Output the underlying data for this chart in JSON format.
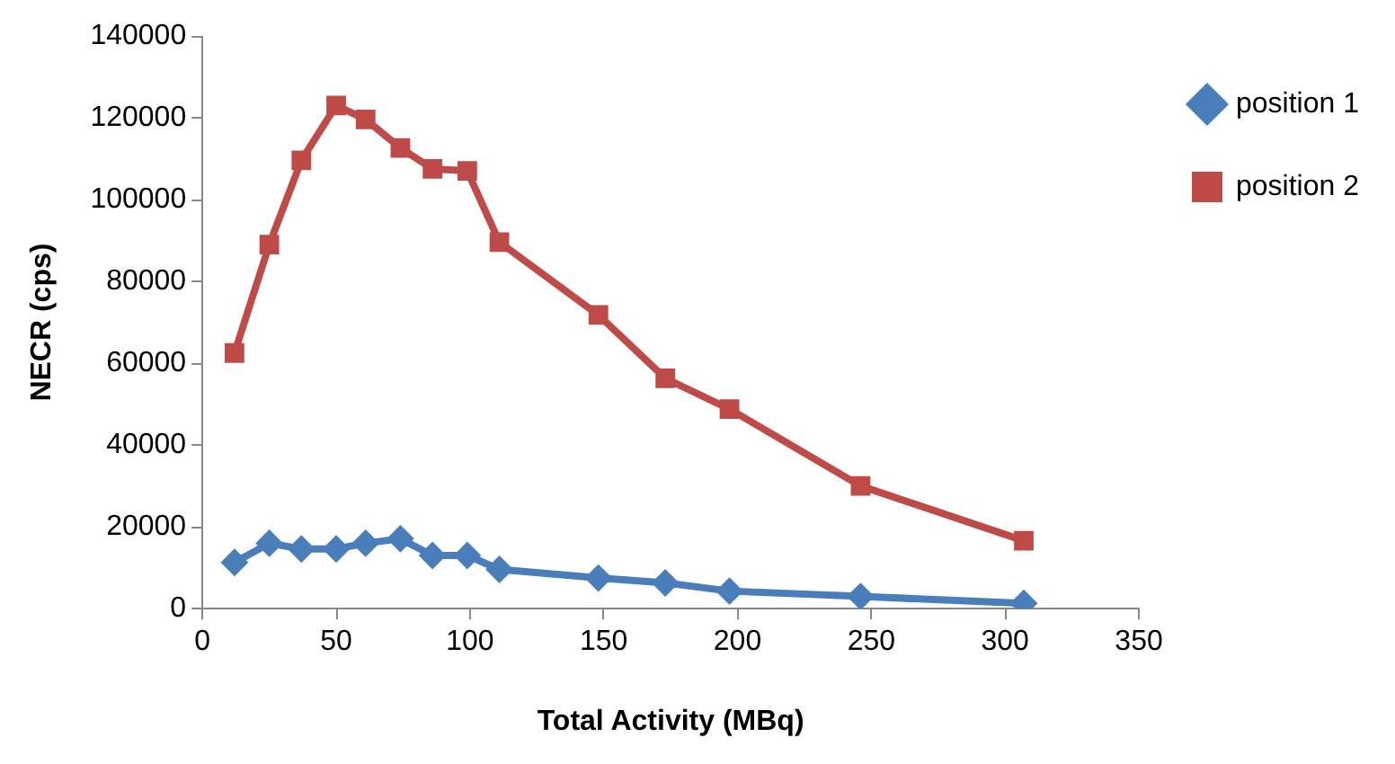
{
  "chart_data": {
    "type": "line",
    "xlabel": "Total Activity (MBq)",
    "ylabel": "NECR (cps)",
    "xlim": [
      0,
      350
    ],
    "xticks": [
      0,
      50,
      100,
      150,
      200,
      250,
      300,
      350
    ],
    "ylim": [
      0,
      140000
    ],
    "yticks": [
      0,
      20000,
      40000,
      60000,
      80000,
      100000,
      120000,
      140000
    ],
    "grid": false,
    "legend": "top right",
    "series": [
      {
        "name": "position 1",
        "color": "#4a7ebb",
        "marker": "diamond",
        "x": [
          12,
          25,
          37,
          50,
          61,
          74,
          86,
          99,
          111,
          148,
          173,
          197,
          246,
          307
        ],
        "values": [
          11300,
          16000,
          14600,
          14600,
          16000,
          17100,
          13000,
          13000,
          9600,
          7500,
          6300,
          4300,
          3000,
          1300
        ]
      },
      {
        "name": "position 2",
        "color": "#be4b48",
        "marker": "square",
        "x": [
          12,
          25,
          37,
          50,
          61,
          74,
          86,
          99,
          111,
          148,
          173,
          197,
          246,
          307
        ],
        "values": [
          62500,
          89000,
          109600,
          123000,
          119600,
          112600,
          107500,
          107000,
          89600,
          71800,
          56300,
          48800,
          30000,
          16600
        ]
      }
    ]
  }
}
